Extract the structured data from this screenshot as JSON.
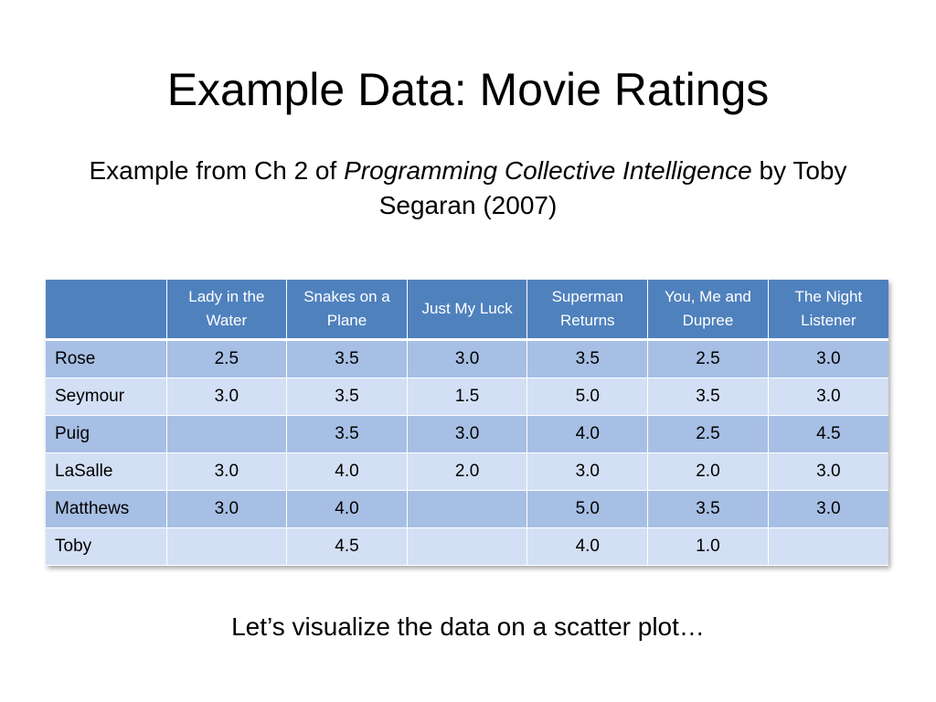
{
  "slide": {
    "title": "Example Data: Movie Ratings",
    "subtitle": {
      "prefix": "Example from Ch 2 of ",
      "book_title": "Programming Collective Intelligence",
      "suffix": " by Toby Segaran (2007)"
    },
    "footer_note": "Let’s visualize the data on a scatter plot…"
  },
  "table": {
    "corner": "",
    "columns": [
      "Lady in the Water",
      "Snakes on a Plane",
      "Just My Luck",
      "Superman Returns",
      "You, Me and Dupree",
      "The Night Listener"
    ],
    "rows": [
      {
        "name": "Rose",
        "values": [
          "2.5",
          "3.5",
          "3.0",
          "3.5",
          "2.5",
          "3.0"
        ]
      },
      {
        "name": "Seymour",
        "values": [
          "3.0",
          "3.5",
          "1.5",
          "5.0",
          "3.5",
          "3.0"
        ]
      },
      {
        "name": "Puig",
        "values": [
          "",
          "3.5",
          "3.0",
          "4.0",
          "2.5",
          "4.5"
        ]
      },
      {
        "name": "LaSalle",
        "values": [
          "3.0",
          "4.0",
          "2.0",
          "3.0",
          "2.0",
          "3.0"
        ]
      },
      {
        "name": "Matthews",
        "values": [
          "3.0",
          "4.0",
          "",
          "5.0",
          "3.5",
          "3.0"
        ]
      },
      {
        "name": "Toby",
        "values": [
          "",
          "4.5",
          "",
          "4.0",
          "1.0",
          ""
        ]
      }
    ]
  },
  "colors": {
    "header_bg": "#4f81bd",
    "row_odd_bg": "#a7bfe4",
    "row_even_bg": "#d3dff4"
  }
}
